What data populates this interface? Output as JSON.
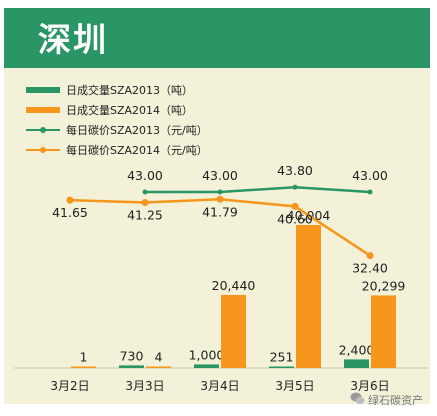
{
  "header": {
    "title": "深圳"
  },
  "watermark": {
    "text": "绿石碳资产"
  },
  "colors": {
    "title_bg": "#2a9565",
    "panel_bg": "#f3f1d8",
    "series_2013": "#2a9565",
    "series_2014": "#f6961d",
    "label": "#222222"
  },
  "chart_data": {
    "type": "bar",
    "categories": [
      "3月2日",
      "3月3日",
      "3月4日",
      "3月5日",
      "3月6日"
    ],
    "legend_position": "top-left",
    "grid": false,
    "bar_series": [
      {
        "name": "日成交量SZA2013（吨）",
        "values": [
          null,
          730,
          1000,
          251,
          2400
        ],
        "labels": [
          "",
          "730",
          "1,000",
          "251",
          "2,400"
        ]
      },
      {
        "name": "日成交量SZA2014（吨）",
        "values": [
          1,
          4,
          20440,
          40004,
          20299
        ],
        "labels": [
          "1",
          "4",
          "20,440",
          "40,004",
          "20,299"
        ]
      }
    ],
    "bar_ylim": [
      0,
      45000
    ],
    "line_series": [
      {
        "name": "每日碳价SZA2013（元/吨）",
        "values": [
          null,
          43.0,
          43.0,
          43.8,
          43.0
        ],
        "labels": [
          "",
          "43.00",
          "43.00",
          "43.80",
          "43.00"
        ]
      },
      {
        "name": "每日碳价SZA2014（元/吨）",
        "values": [
          41.65,
          41.25,
          41.79,
          40.6,
          32.4
        ],
        "labels": [
          "41.65",
          "41.25",
          "41.79",
          "40.60",
          "32.40"
        ]
      }
    ],
    "line_ylim": [
      20,
      50
    ]
  }
}
